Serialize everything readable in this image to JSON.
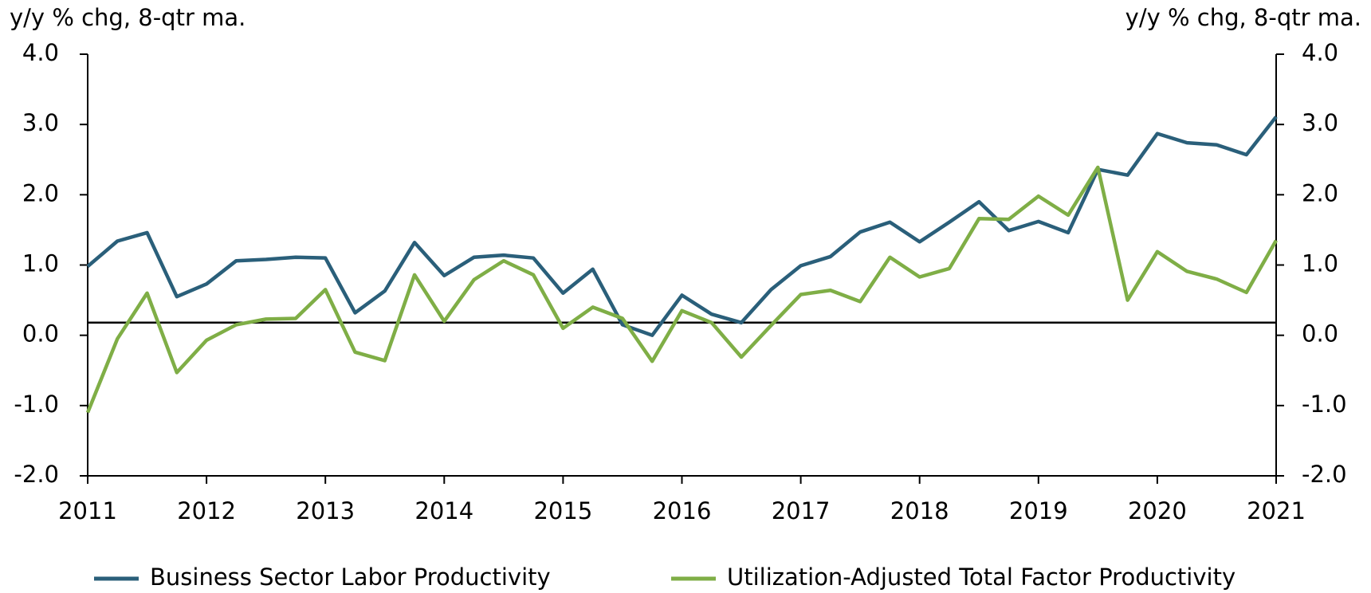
{
  "chart_data": {
    "type": "line",
    "ylabel": "y/y % chg, 8-qtr ma.",
    "y2label": "y/y % chg, 8-qtr ma.",
    "x": [
      2011,
      2011.25,
      2011.5,
      2011.75,
      2012,
      2012.25,
      2012.5,
      2012.75,
      2013,
      2013.25,
      2013.5,
      2013.75,
      2014,
      2014.25,
      2014.5,
      2014.75,
      2015,
      2015.25,
      2015.5,
      2015.75,
      2016,
      2016.25,
      2016.5,
      2016.75,
      2017,
      2017.25,
      2017.5,
      2017.75,
      2018,
      2018.25,
      2018.5,
      2018.75,
      2019,
      2019.25,
      2019.5,
      2019.75,
      2020,
      2020.25,
      2020.5,
      2020.75,
      2021
    ],
    "series": [
      {
        "name": "Business Sector Labor Productivity",
        "color": "#2a5f7a",
        "values": [
          0.98,
          1.34,
          1.46,
          0.55,
          0.73,
          1.06,
          1.08,
          1.11,
          1.1,
          0.32,
          0.63,
          1.32,
          0.85,
          1.11,
          1.14,
          1.1,
          0.6,
          0.94,
          0.15,
          0.0,
          0.57,
          0.3,
          0.18,
          0.65,
          0.99,
          1.12,
          1.47,
          1.61,
          1.33,
          1.61,
          1.9,
          1.49,
          1.62,
          1.46,
          2.36,
          2.28,
          2.87,
          2.74,
          2.71,
          2.57,
          3.11
        ]
      },
      {
        "name": "Utilization-Adjusted Total Factor Productivity",
        "color": "#7fae46",
        "values": [
          -1.1,
          -0.05,
          0.6,
          -0.53,
          -0.07,
          0.15,
          0.23,
          0.24,
          0.65,
          -0.24,
          -0.36,
          0.86,
          0.2,
          0.79,
          1.06,
          0.86,
          0.1,
          0.4,
          0.24,
          -0.37,
          0.35,
          0.18,
          -0.31,
          0.14,
          0.58,
          0.64,
          0.48,
          1.11,
          0.83,
          0.95,
          1.66,
          1.65,
          1.98,
          1.71,
          2.39,
          0.5,
          1.19,
          0.91,
          0.8,
          0.61,
          1.35
        ]
      }
    ],
    "reference_line": 0.18,
    "xlim": [
      2011,
      2021
    ],
    "xticks": [
      2011,
      2012,
      2013,
      2014,
      2015,
      2016,
      2017,
      2018,
      2019,
      2020,
      2021
    ],
    "ylim": [
      -2,
      4
    ],
    "yticks": [
      {
        "value": -2,
        "label": "-2.0"
      },
      {
        "value": -1,
        "label": "-1.0"
      },
      {
        "value": 0,
        "label": "0.0"
      },
      {
        "value": 1,
        "label": "1.0"
      },
      {
        "value": 2,
        "label": "2.0"
      },
      {
        "value": 3,
        "label": "3.0"
      },
      {
        "value": 4,
        "label": "4.0"
      }
    ],
    "y2lim": [
      -2,
      4
    ],
    "y2ticks": [
      {
        "value": -2,
        "label": "-2.0"
      },
      {
        "value": -1,
        "label": "-1.0"
      },
      {
        "value": 0,
        "label": "0.0"
      },
      {
        "value": 1,
        "label": "1.0"
      },
      {
        "value": 2,
        "label": "2.0"
      },
      {
        "value": 3,
        "label": "3.0"
      },
      {
        "value": 4,
        "label": "4.0"
      }
    ],
    "legend": "bottom"
  }
}
